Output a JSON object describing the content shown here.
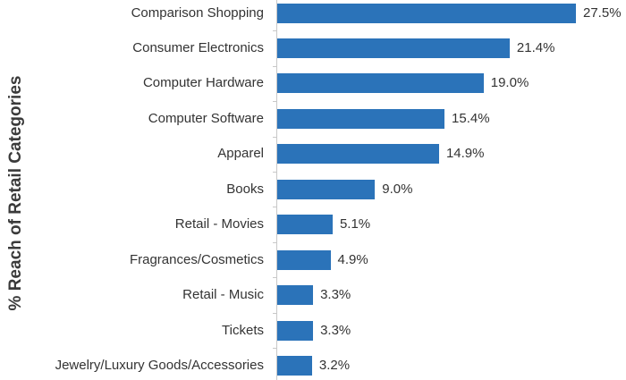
{
  "chart_data": {
    "type": "bar",
    "orientation": "horizontal",
    "title": "",
    "xlabel": "",
    "ylabel": "% Reach of Retail Categories",
    "categories": [
      "Comparison Shopping",
      "Consumer Electronics",
      "Computer Hardware",
      "Computer Software",
      "Apparel",
      "Books",
      "Retail - Movies",
      "Fragrances/Cosmetics",
      "Retail - Music",
      "Tickets",
      "Jewelry/Luxury Goods/Accessories"
    ],
    "values": [
      27.5,
      21.4,
      19.0,
      15.4,
      14.9,
      9.0,
      5.1,
      4.9,
      3.3,
      3.3,
      3.2
    ],
    "value_labels": [
      "27.5%",
      "21.4%",
      "19.0%",
      "15.4%",
      "14.9%",
      "9.0%",
      "5.1%",
      "4.9%",
      "3.3%",
      "3.3%",
      "3.2%"
    ],
    "xlim": [
      0,
      28
    ],
    "grid": false,
    "legend": "none",
    "bar_color": "#2b73b9"
  }
}
